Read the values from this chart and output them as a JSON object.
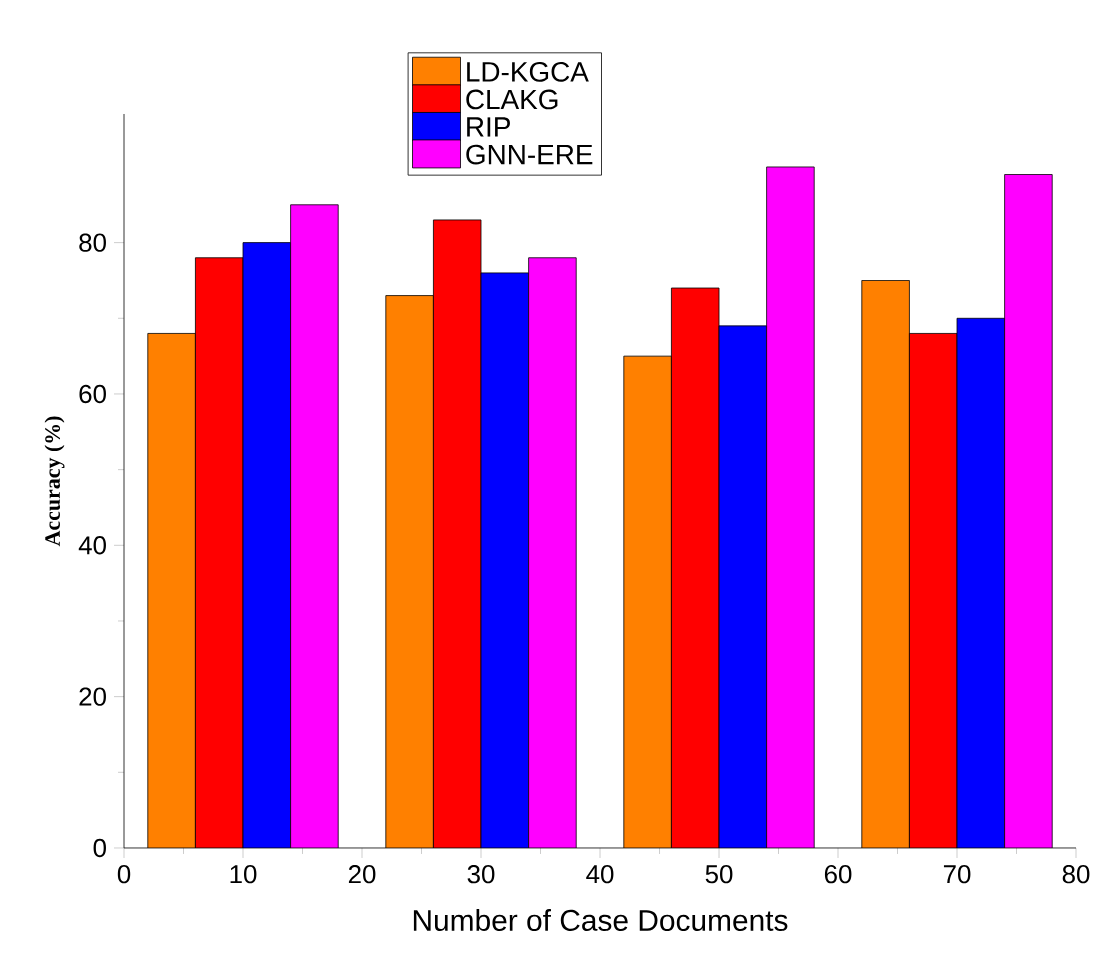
{
  "chart_data": {
    "type": "bar",
    "xlabel": "Number of Case Documents",
    "ylabel": "Accuracy (%)",
    "xlim": [
      0,
      80
    ],
    "xticks": [
      0,
      10,
      20,
      30,
      40,
      50,
      60,
      70,
      80
    ],
    "ylim": [
      0,
      97
    ],
    "yticks": [
      0,
      20,
      40,
      60,
      80
    ],
    "grid": false,
    "legend": "top",
    "series": [
      {
        "name": "LD-KGCA",
        "color": "#ff8000",
        "x": [
          4,
          24,
          44,
          64
        ],
        "values": [
          68,
          73,
          65,
          75
        ]
      },
      {
        "name": "CLAKG",
        "color": "#ff0000",
        "x": [
          8,
          28,
          48,
          68
        ],
        "values": [
          78,
          83,
          74,
          68
        ]
      },
      {
        "name": "RIP",
        "color": "#0000ff",
        "x": [
          12,
          32,
          52,
          72
        ],
        "values": [
          80,
          76,
          69,
          70
        ]
      },
      {
        "name": "GNN-ERE",
        "color": "#ff00ff",
        "x": [
          16,
          36,
          56,
          76
        ],
        "values": [
          85,
          78,
          90,
          89
        ]
      }
    ]
  }
}
